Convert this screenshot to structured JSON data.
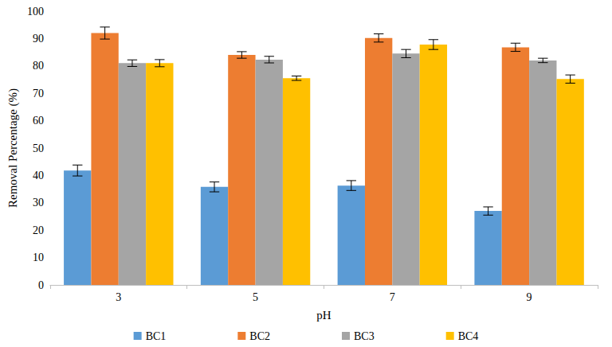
{
  "chart_data": {
    "type": "bar",
    "x_label": "pH",
    "y_label": "Removal Percentage (%)",
    "categories": [
      "3",
      "5",
      "7",
      "9"
    ],
    "series": [
      {
        "name": "BC1",
        "color": "#5b9bd5",
        "values": [
          41.8,
          35.8,
          36.3,
          27.0
        ],
        "errors": [
          2.0,
          1.8,
          1.8,
          1.5
        ]
      },
      {
        "name": "BC2",
        "color": "#ed7d31",
        "values": [
          92.0,
          84.0,
          90.2,
          86.8
        ],
        "errors": [
          2.2,
          1.2,
          1.5,
          1.5
        ]
      },
      {
        "name": "BC3",
        "color": "#a5a5a5",
        "values": [
          81.0,
          82.3,
          84.5,
          82.0
        ],
        "errors": [
          1.2,
          1.2,
          1.5,
          0.8
        ]
      },
      {
        "name": "BC4",
        "color": "#ffc000",
        "values": [
          81.0,
          75.5,
          87.8,
          75.2
        ],
        "errors": [
          1.3,
          0.8,
          1.8,
          1.5
        ]
      }
    ],
    "ylim": [
      0,
      100
    ],
    "yticks": [
      0,
      10,
      20,
      30,
      40,
      50,
      60,
      70,
      80,
      90,
      100
    ],
    "grid": false,
    "legend": "bottom"
  }
}
